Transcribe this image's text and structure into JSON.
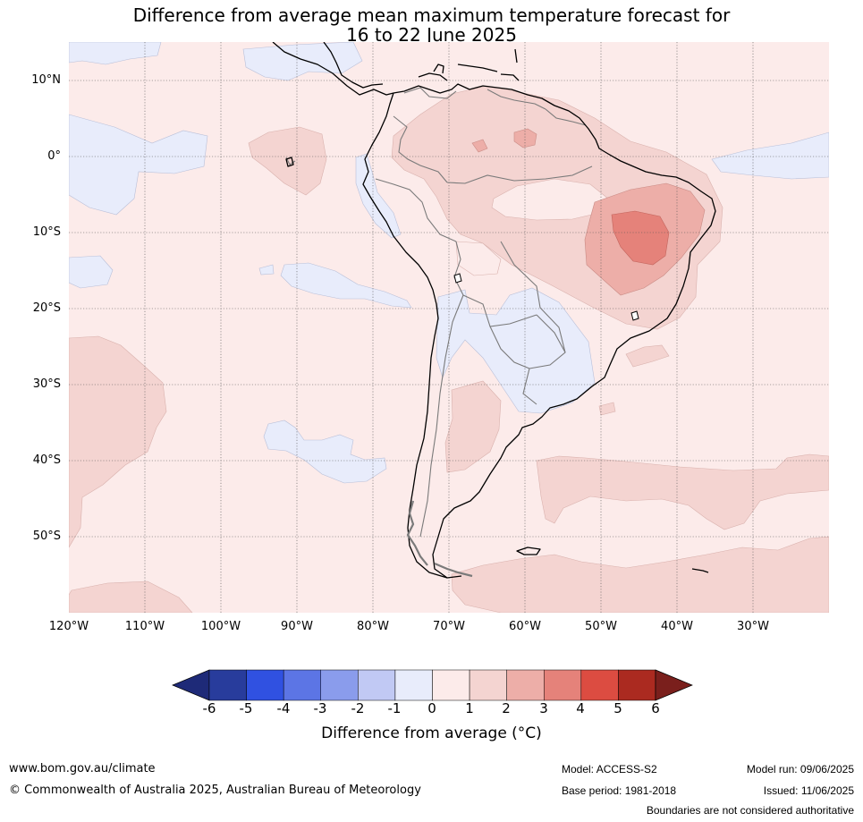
{
  "header": {
    "title_line1": "Difference from average mean maximum temperature forecast for",
    "title_line2": "16 to 22 June 2025"
  },
  "map": {
    "lat_labels": [
      "10°N",
      "0°",
      "10°S",
      "20°S",
      "30°S",
      "40°S",
      "50°S"
    ],
    "lon_labels": [
      "120°W",
      "110°W",
      "100°W",
      "90°W",
      "80°W",
      "70°W",
      "60°W",
      "50°W",
      "40°W",
      "30°W"
    ],
    "grid": true,
    "colors": {
      "base_anomaly_0_to_1": "#fcebea",
      "anomaly_minus1_to_0": "#e8ecfb",
      "anomaly_1_to_2": "#f4d4d1",
      "anomaly_2_to_3": "#edaea8",
      "anomaly_3_to_4": "#e5827a",
      "coastline": "#000000",
      "borders": "#7a7a7a"
    }
  },
  "colorbar": {
    "ticks": [
      "-6",
      "-5",
      "-4",
      "-3",
      "-2",
      "-1",
      "0",
      "1",
      "2",
      "3",
      "4",
      "5",
      "6"
    ],
    "colors": [
      "#283c9c",
      "#3051e1",
      "#5c75e5",
      "#8a9cec",
      "#c1c9f4",
      "#e8ecfb",
      "#fcebea",
      "#f4d4d1",
      "#edaea8",
      "#e5827a",
      "#dc4c41",
      "#ab2a20"
    ],
    "under_color": "#1e2a78",
    "over_color": "#7a1f1c",
    "label": "Difference from average (°C)"
  },
  "footer": {
    "website": "www.bom.gov.au/climate",
    "copyright": "© Commonwealth of Australia 2025, Australian Bureau of Meteorology",
    "model": "Model: ACCESS-S2",
    "model_run": "Model run: 09/06/2025",
    "base_period": "Base period: 1981-2018",
    "issued": "Issued: 11/06/2025",
    "disclaimer": "Boundaries are not considered authoritative"
  }
}
